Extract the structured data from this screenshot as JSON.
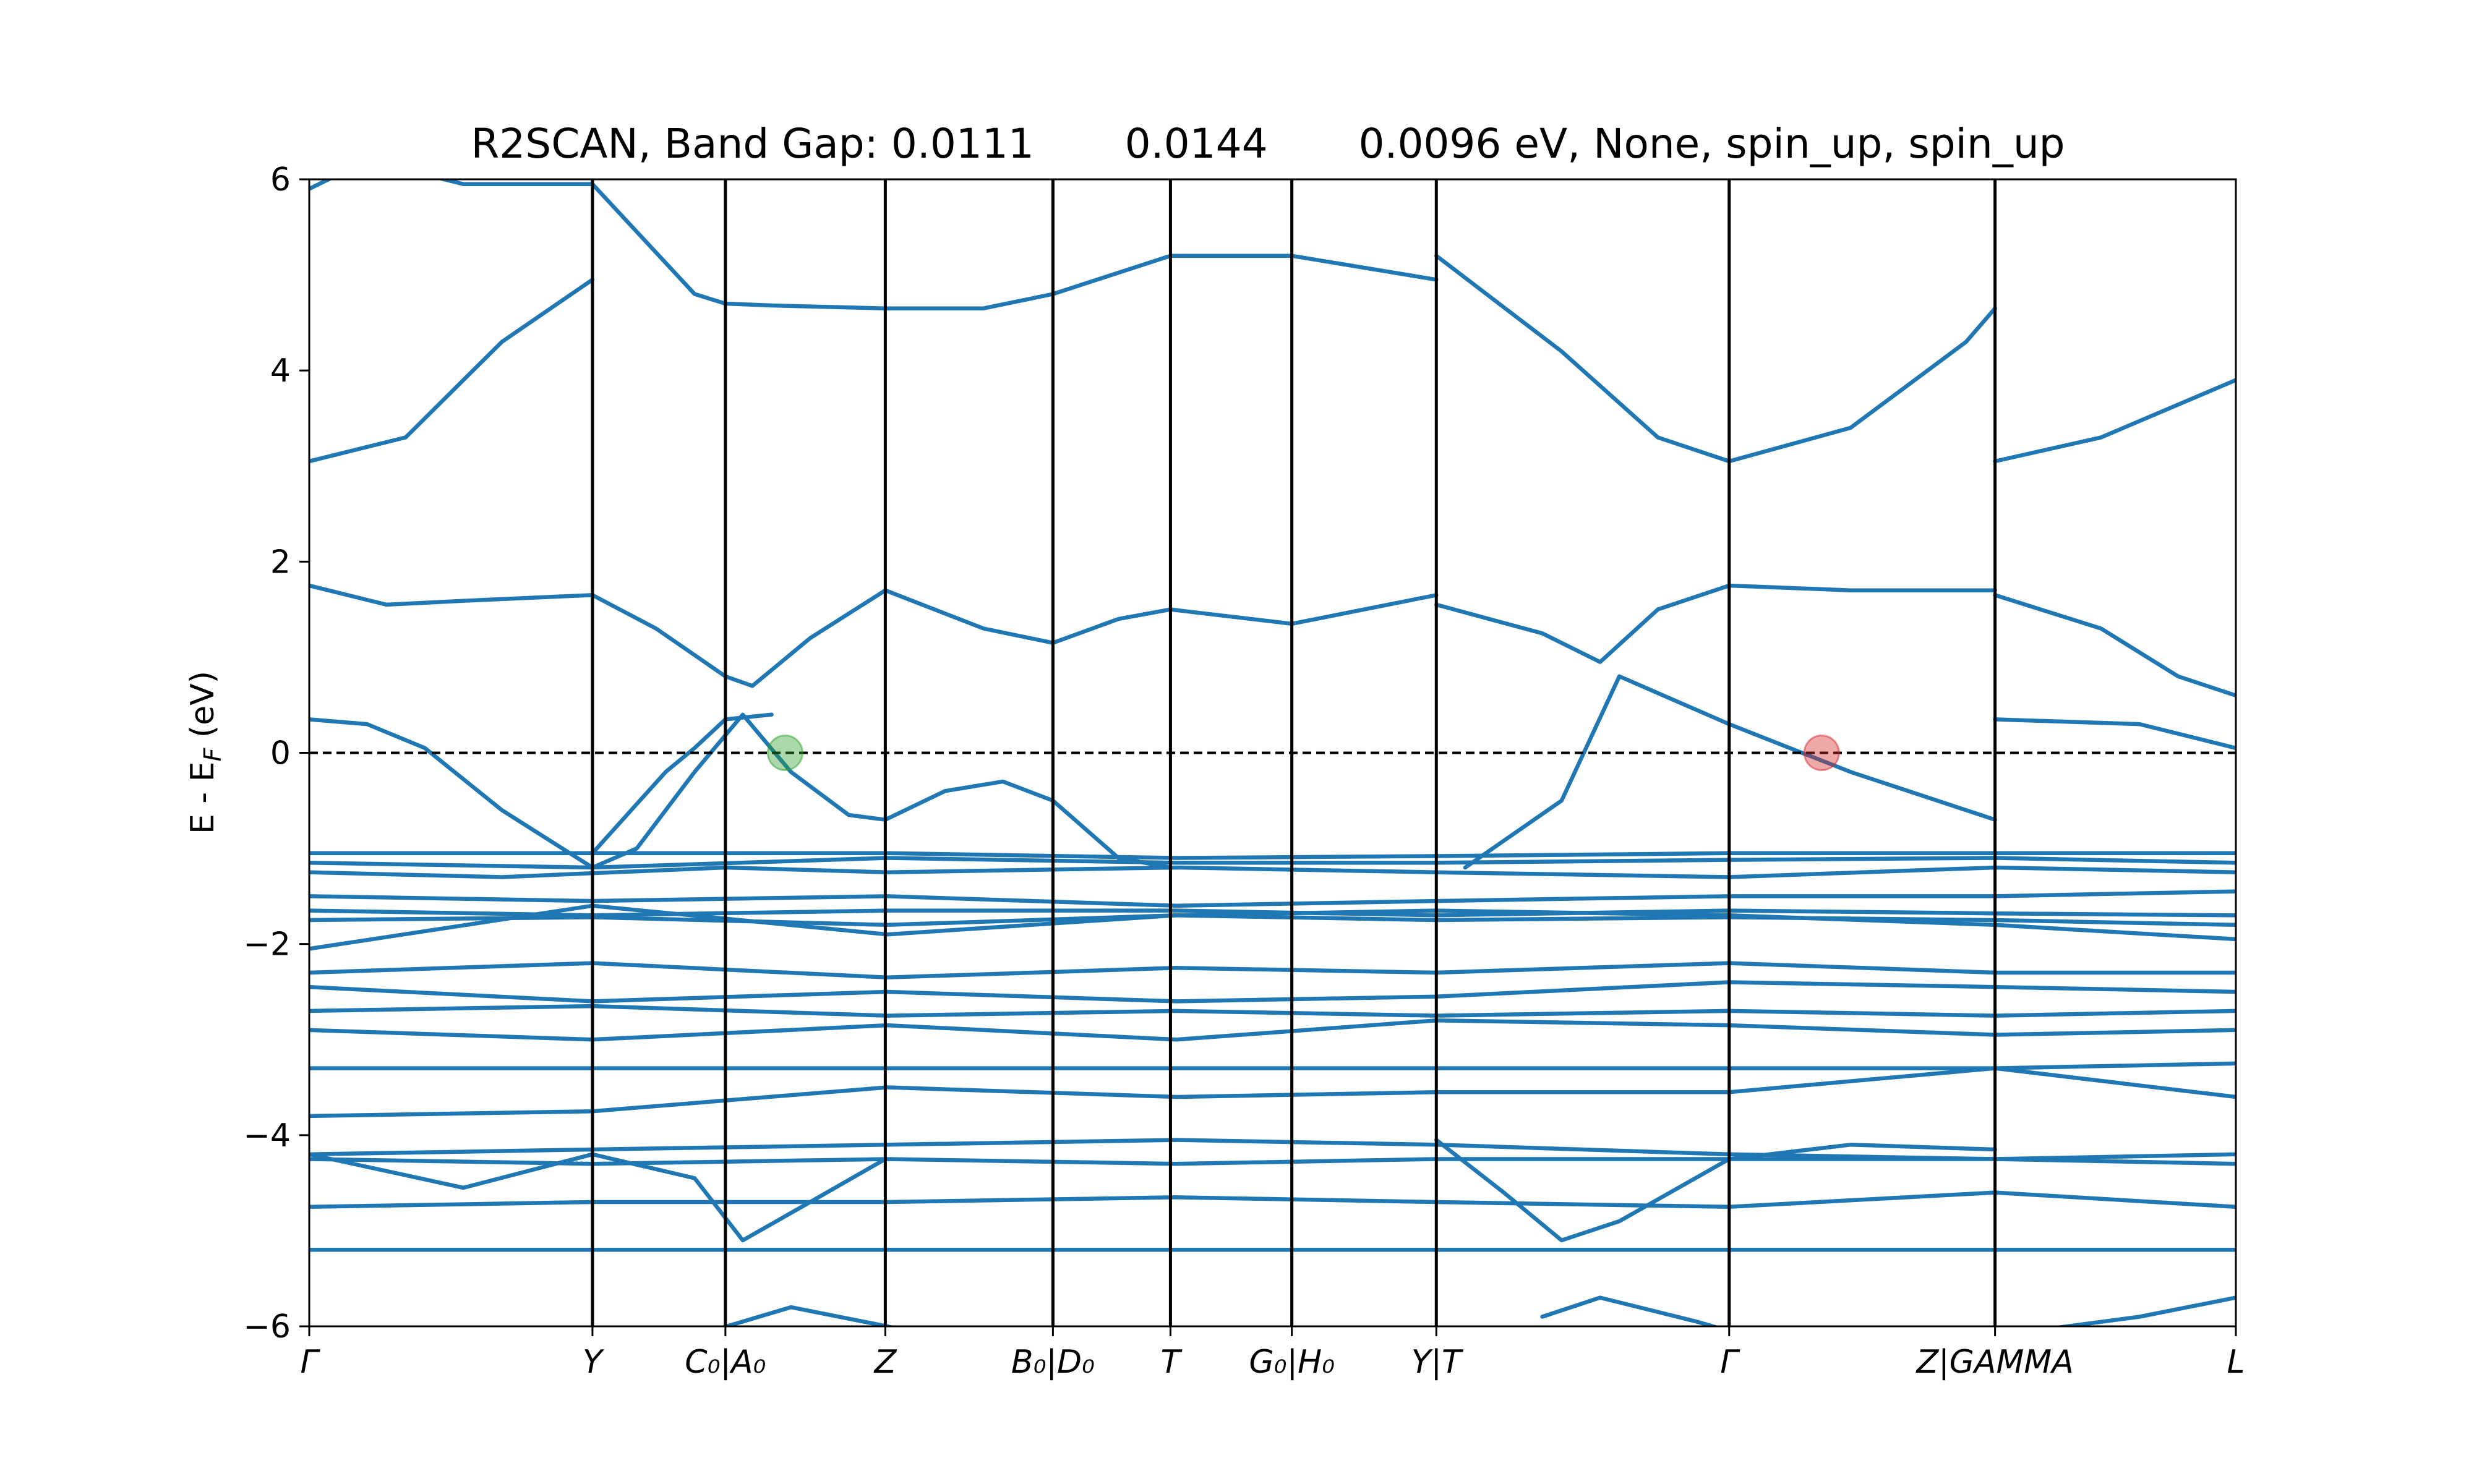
{
  "chart_data": {
    "type": "line",
    "title": "R2SCAN, Band Gap: 0.0111       0.0144       0.0096 eV, None, spin_up, spin_up",
    "ylabel": "E - E_F (eV)",
    "ylabel_main": "E - E",
    "ylabel_sub": "F",
    "ylabel_tail": " (eV)",
    "ylim": [
      -6,
      6
    ],
    "yticks": [
      {
        "value": -6,
        "label": "−6"
      },
      {
        "value": -4,
        "label": "−4"
      },
      {
        "value": -2,
        "label": "−2"
      },
      {
        "value": 0,
        "label": "0"
      },
      {
        "value": 2,
        "label": "2"
      },
      {
        "value": 4,
        "label": "4"
      },
      {
        "value": 6,
        "label": "6"
      }
    ],
    "xlim": [
      0,
      1
    ],
    "grid": false,
    "fermi_level": 0,
    "kpoints": [
      {
        "x": 0.0,
        "label": "Γ"
      },
      {
        "x": 0.147,
        "label": "Y"
      },
      {
        "x": 0.216,
        "label": "C₀|A₀"
      },
      {
        "x": 0.299,
        "label": "Z"
      },
      {
        "x": 0.386,
        "label": "B₀|D₀"
      },
      {
        "x": 0.447,
        "label": "T"
      },
      {
        "x": 0.51,
        "label": "G₀|H₀"
      },
      {
        "x": 0.585,
        "label": "Y|T"
      },
      {
        "x": 0.737,
        "label": "Γ"
      },
      {
        "x": 0.875,
        "label": "Z|GAMMA"
      },
      {
        "x": 1.0,
        "label": "L"
      }
    ],
    "markers": [
      {
        "x": 0.247,
        "y": 0.0,
        "color": "#2ca02c",
        "role": "valence band maximum"
      },
      {
        "x": 0.785,
        "y": 0.0,
        "color": "#d62728",
        "role": "conduction band minimum"
      }
    ],
    "series_color": "#1f77b4",
    "series": [
      {
        "x": [
          0,
          0.03,
          0.08,
          0.147,
          0.2,
          0.216,
          0.24,
          0.299,
          0.35,
          0.386,
          0.447,
          0.51,
          0.585
        ],
        "y": [
          5.9,
          6.2,
          5.95,
          5.95,
          4.8,
          4.7,
          4.68,
          4.65,
          4.65,
          4.8,
          5.2,
          5.2,
          4.95
        ]
      },
      {
        "x": [
          0,
          0.05,
          0.1,
          0.147
        ],
        "y": [
          3.05,
          3.3,
          4.3,
          4.95
        ]
      },
      {
        "x": [
          0.585,
          0.65,
          0.7,
          0.737,
          0.8,
          0.86,
          0.875
        ],
        "y": [
          5.2,
          4.2,
          3.3,
          3.05,
          3.4,
          4.3,
          4.65
        ]
      },
      {
        "x": [
          0.875,
          0.93,
          1.0
        ],
        "y": [
          3.05,
          3.3,
          3.9
        ]
      },
      {
        "x": [
          0,
          0.04,
          0.09,
          0.147,
          0.18,
          0.216,
          0.23,
          0.26,
          0.299,
          0.35,
          0.386,
          0.42,
          0.447,
          0.51,
          0.585
        ],
        "y": [
          1.75,
          1.55,
          1.6,
          1.65,
          1.3,
          0.8,
          0.7,
          1.2,
          1.7,
          1.3,
          1.15,
          1.4,
          1.5,
          1.35,
          1.65
        ]
      },
      {
        "x": [
          0.585,
          0.64,
          0.67,
          0.7,
          0.737,
          0.8,
          0.875
        ],
        "y": [
          1.55,
          1.25,
          0.95,
          1.5,
          1.75,
          1.7,
          1.7
        ]
      },
      {
        "x": [
          0.875,
          0.93,
          0.97,
          1.0
        ],
        "y": [
          1.65,
          1.3,
          0.8,
          0.6
        ]
      },
      {
        "x": [
          0,
          0.03,
          0.06,
          0.1,
          0.147,
          0.17,
          0.2,
          0.225,
          0.25,
          0.28,
          0.299,
          0.33,
          0.36,
          0.386,
          0.42,
          0.447
        ],
        "y": [
          0.35,
          0.3,
          0.05,
          -0.6,
          -1.2,
          -1.0,
          -0.2,
          0.4,
          -0.2,
          -0.65,
          -0.7,
          -0.4,
          -0.3,
          -0.5,
          -1.1,
          -1.2
        ]
      },
      {
        "x": [
          0.6,
          0.65,
          0.68,
          0.737,
          0.8,
          0.875
        ],
        "y": [
          -1.2,
          -0.5,
          0.8,
          0.3,
          -0.2,
          -0.7
        ]
      },
      {
        "x": [
          0.875,
          0.95,
          1.0
        ],
        "y": [
          0.35,
          0.3,
          0.05
        ]
      },
      {
        "x": [
          0.147,
          0.185,
          0.2,
          0.216,
          0.24
        ],
        "y": [
          -1.05,
          -0.2,
          0.05,
          0.35,
          0.4
        ]
      },
      {
        "x": [
          0,
          0.147,
          0.3,
          0.45,
          0.585,
          0.737,
          0.875,
          1.0
        ],
        "y": [
          -1.05,
          -1.05,
          -1.05,
          -1.1,
          -1.08,
          -1.05,
          -1.05,
          -1.05
        ]
      },
      {
        "x": [
          0,
          0.147,
          0.3,
          0.45,
          0.585,
          0.737,
          0.875,
          1.0
        ],
        "y": [
          -1.15,
          -1.2,
          -1.1,
          -1.15,
          -1.15,
          -1.12,
          -1.1,
          -1.15
        ]
      },
      {
        "x": [
          0,
          0.1,
          0.216,
          0.3,
          0.45,
          0.585,
          0.737,
          0.875,
          1.0
        ],
        "y": [
          -1.25,
          -1.3,
          -1.2,
          -1.25,
          -1.2,
          -1.25,
          -1.3,
          -1.2,
          -1.25
        ]
      },
      {
        "x": [
          0,
          0.147,
          0.3,
          0.45,
          0.585,
          0.737,
          0.875,
          1.0
        ],
        "y": [
          -1.5,
          -1.55,
          -1.5,
          -1.6,
          -1.55,
          -1.5,
          -1.5,
          -1.45
        ]
      },
      {
        "x": [
          0,
          0.147,
          0.3,
          0.45,
          0.585,
          0.737,
          0.875,
          1.0
        ],
        "y": [
          -1.65,
          -1.7,
          -1.65,
          -1.65,
          -1.7,
          -1.65,
          -1.68,
          -1.7
        ]
      },
      {
        "x": [
          0,
          0.147,
          0.3,
          0.45,
          0.585,
          0.737,
          0.875,
          1.0
        ],
        "y": [
          -1.75,
          -1.72,
          -1.8,
          -1.7,
          -1.75,
          -1.72,
          -1.75,
          -1.8
        ]
      },
      {
        "x": [
          0,
          0.147,
          0.3,
          0.45,
          0.585,
          0.737,
          0.875,
          1.0
        ],
        "y": [
          -2.05,
          -1.6,
          -1.9,
          -1.7,
          -1.65,
          -1.7,
          -1.8,
          -1.95
        ]
      },
      {
        "x": [
          0,
          0.147,
          0.3,
          0.45,
          0.585,
          0.737,
          0.875,
          1.0
        ],
        "y": [
          -2.3,
          -2.2,
          -2.35,
          -2.25,
          -2.3,
          -2.2,
          -2.3,
          -2.3
        ]
      },
      {
        "x": [
          0,
          0.147,
          0.3,
          0.45,
          0.585,
          0.737,
          0.875,
          1.0
        ],
        "y": [
          -2.45,
          -2.6,
          -2.5,
          -2.6,
          -2.55,
          -2.4,
          -2.45,
          -2.5
        ]
      },
      {
        "x": [
          0,
          0.147,
          0.3,
          0.45,
          0.585,
          0.737,
          0.875,
          1.0
        ],
        "y": [
          -2.7,
          -2.65,
          -2.75,
          -2.7,
          -2.75,
          -2.7,
          -2.75,
          -2.7
        ]
      },
      {
        "x": [
          0,
          0.147,
          0.3,
          0.45,
          0.585,
          0.737,
          0.875,
          1.0
        ],
        "y": [
          -2.9,
          -3.0,
          -2.85,
          -3.0,
          -2.8,
          -2.85,
          -2.95,
          -2.9
        ]
      },
      {
        "x": [
          0,
          0.147,
          0.3,
          0.45,
          0.585,
          0.737,
          0.875,
          1.0
        ],
        "y": [
          -3.3,
          -3.3,
          -3.3,
          -3.3,
          -3.3,
          -3.3,
          -3.3,
          -3.25
        ]
      },
      {
        "x": [
          0,
          0.147,
          0.3,
          0.45,
          0.585,
          0.737,
          0.875,
          1.0
        ],
        "y": [
          -3.8,
          -3.75,
          -3.5,
          -3.6,
          -3.55,
          -3.55,
          -3.3,
          -3.6
        ]
      },
      {
        "x": [
          0,
          0.147,
          0.3,
          0.45,
          0.585,
          0.737,
          0.875,
          1.0
        ],
        "y": [
          -4.2,
          -4.15,
          -4.1,
          -4.05,
          -4.1,
          -4.2,
          -4.25,
          -4.2
        ]
      },
      {
        "x": [
          0,
          0.147,
          0.3,
          0.45,
          0.585,
          0.737,
          0.875,
          1.0
        ],
        "y": [
          -4.25,
          -4.3,
          -4.25,
          -4.3,
          -4.25,
          -4.25,
          -4.25,
          -4.3
        ]
      },
      {
        "x": [
          0,
          0.147,
          0.3,
          0.45,
          0.585,
          0.737,
          0.875,
          1.0
        ],
        "y": [
          -4.75,
          -4.7,
          -4.7,
          -4.65,
          -4.7,
          -4.75,
          -4.6,
          -4.75
        ]
      },
      {
        "x": [
          0,
          0.147,
          0.3,
          0.45,
          0.585,
          0.737,
          0.875,
          1.0
        ],
        "y": [
          -5.2,
          -5.2,
          -5.2,
          -5.2,
          -5.2,
          -5.2,
          -5.2,
          -5.2
        ]
      },
      {
        "x": [
          0,
          0.08,
          0.147,
          0.2,
          0.225,
          0.26,
          0.299
        ],
        "y": [
          -4.2,
          -4.55,
          -4.2,
          -4.45,
          -5.1,
          -4.7,
          -4.25
        ]
      },
      {
        "x": [
          0.585,
          0.62,
          0.65,
          0.68,
          0.737,
          0.8,
          0.875
        ],
        "y": [
          -4.05,
          -4.6,
          -5.1,
          -4.9,
          -4.25,
          -4.1,
          -4.15
        ]
      },
      {
        "x": [
          0.2,
          0.25,
          0.3,
          0.32
        ],
        "y": [
          -6.1,
          -5.8,
          -6.0,
          -6.1
        ]
      },
      {
        "x": [
          0.64,
          0.67,
          0.72,
          0.737
        ],
        "y": [
          -5.9,
          -5.7,
          -5.95,
          -6.05
        ]
      },
      {
        "x": [
          0.875,
          0.95,
          1.0
        ],
        "y": [
          -6.1,
          -5.9,
          -5.7
        ]
      }
    ]
  }
}
